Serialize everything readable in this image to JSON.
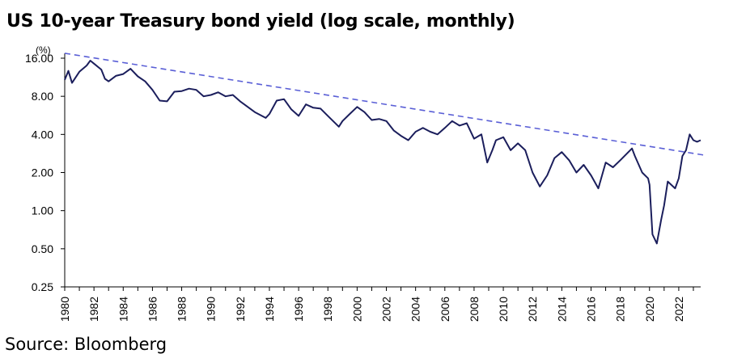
{
  "chart_data": {
    "type": "line",
    "title": "US 10-year Treasury bond yield (log scale, monthly)",
    "ylabel": "(%)",
    "xlabel": "",
    "y_scale": "log",
    "ylim": [
      0.25,
      16
    ],
    "xlim": [
      1980,
      2023.5
    ],
    "y_ticks": [
      "16.00",
      "8.00",
      "4.00",
      "2.00",
      "1.00",
      "0.50",
      "0.25"
    ],
    "y_tick_values": [
      16,
      8,
      4,
      2,
      1,
      0.5,
      0.25
    ],
    "x_ticks": [
      "1980",
      "1982",
      "1984",
      "1986",
      "1988",
      "1990",
      "1992",
      "1994",
      "1996",
      "1998",
      "2000",
      "2002",
      "2004",
      "2006",
      "2008",
      "2010",
      "2012",
      "2014",
      "2016",
      "2018",
      "2020",
      "2022"
    ],
    "grid": false,
    "colors": {
      "series": "#1b1e5c",
      "trend": "#5a5fd6"
    },
    "series": [
      {
        "x": [
          1980.0,
          1980.25,
          1980.5,
          1981.0,
          1981.5,
          1981.75,
          1982.0,
          1982.5,
          1982.75,
          1983.0,
          1983.5,
          1984.0,
          1984.5,
          1985.0,
          1985.5,
          1986.0,
          1986.5,
          1987.0,
          1987.5,
          1988.0,
          1988.5,
          1989.0,
          1989.5,
          1990.0,
          1990.5,
          1991.0,
          1991.5,
          1992.0,
          1993.0,
          1993.75,
          1994.0,
          1994.5,
          1995.0,
          1995.5,
          1996.0,
          1996.5,
          1997.0,
          1997.5,
          1998.0,
          1998.75,
          1999.0,
          1999.5,
          2000.0,
          2000.5,
          2001.0,
          2001.5,
          2002.0,
          2002.5,
          2003.0,
          2003.5,
          2004.0,
          2004.5,
          2005.0,
          2005.5,
          2006.0,
          2006.5,
          2007.0,
          2007.5,
          2008.0,
          2008.5,
          2008.9,
          2009.25,
          2009.5,
          2010.0,
          2010.5,
          2011.0,
          2011.5,
          2012.0,
          2012.5,
          2013.0,
          2013.5,
          2014.0,
          2014.5,
          2015.0,
          2015.5,
          2016.0,
          2016.5,
          2017.0,
          2017.5,
          2018.0,
          2018.8,
          2019.0,
          2019.5,
          2019.9,
          2020.0,
          2020.2,
          2020.5,
          2020.8,
          2021.0,
          2021.25,
          2021.75,
          2022.0,
          2022.25,
          2022.5,
          2022.75,
          2023.0,
          2023.25,
          2023.5
        ],
        "y": [
          10.8,
          12.7,
          10.2,
          12.5,
          14.0,
          15.3,
          14.5,
          13.0,
          11.0,
          10.5,
          11.6,
          12.0,
          13.2,
          11.5,
          10.5,
          9.0,
          7.4,
          7.3,
          8.7,
          8.8,
          9.2,
          9.0,
          8.0,
          8.2,
          8.6,
          8.0,
          8.2,
          7.3,
          6.0,
          5.4,
          5.8,
          7.4,
          7.6,
          6.3,
          5.6,
          6.9,
          6.5,
          6.4,
          5.6,
          4.6,
          5.1,
          5.8,
          6.6,
          6.0,
          5.2,
          5.3,
          5.1,
          4.3,
          3.9,
          3.6,
          4.2,
          4.5,
          4.2,
          4.0,
          4.5,
          5.1,
          4.7,
          4.9,
          3.7,
          4.0,
          2.4,
          3.0,
          3.6,
          3.8,
          3.0,
          3.4,
          3.0,
          2.0,
          1.55,
          1.9,
          2.6,
          2.9,
          2.5,
          2.0,
          2.3,
          1.9,
          1.5,
          2.4,
          2.2,
          2.5,
          3.1,
          2.7,
          2.0,
          1.8,
          1.6,
          0.65,
          0.55,
          0.85,
          1.1,
          1.7,
          1.5,
          1.8,
          2.7,
          3.0,
          4.0,
          3.6,
          3.5,
          3.6
        ]
      }
    ],
    "trendline": {
      "x": [
        1980,
        2023.7
      ],
      "y": [
        17.5,
        2.75
      ]
    }
  },
  "source": "Source: Bloomberg"
}
